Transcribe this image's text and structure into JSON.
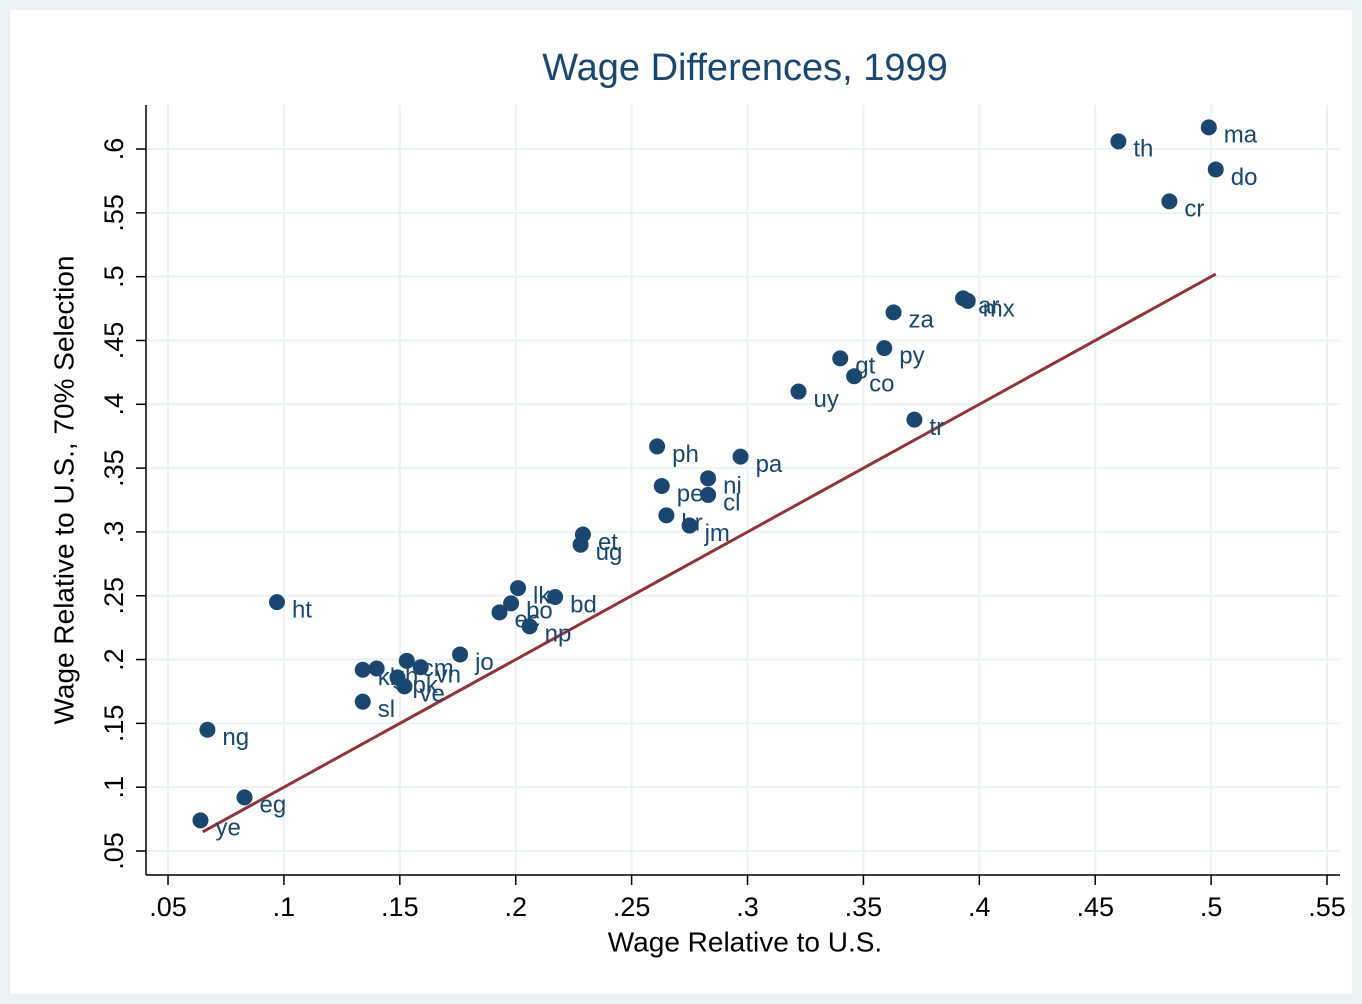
{
  "chart_data": {
    "type": "scatter",
    "title": "Wage Differences, 1999",
    "x_label": "Wage Relative to U.S.",
    "y_label": "Wage Relative to U.S., 70% Selection",
    "color": "#1a476f",
    "point_labels": [
      "ma",
      "th",
      "do",
      "cr",
      "ar",
      "mx",
      "za",
      "py",
      "gt",
      "co",
      "uy",
      "tr",
      "ph",
      "pa",
      "ni",
      "pe",
      "cl",
      "br",
      "jm",
      "et",
      "ug",
      "lk",
      "bd",
      "bo",
      "ec",
      "np",
      "ht",
      "jo",
      "cm",
      "kh",
      "gh",
      "vn",
      "pk",
      "ve",
      "sl",
      "ng",
      "eg",
      "ye"
    ],
    "x": [
      0.499,
      0.46,
      0.502,
      0.482,
      0.393,
      0.395,
      0.363,
      0.359,
      0.34,
      0.346,
      0.322,
      0.372,
      0.261,
      0.297,
      0.283,
      0.263,
      0.283,
      0.265,
      0.275,
      0.229,
      0.228,
      0.201,
      0.217,
      0.198,
      0.193,
      0.206,
      0.097,
      0.176,
      0.153,
      0.134,
      0.14,
      0.159,
      0.149,
      0.152,
      0.134,
      0.067,
      0.083,
      0.064
    ],
    "values": [
      0.617,
      0.606,
      0.584,
      0.559,
      0.483,
      0.481,
      0.472,
      0.444,
      0.436,
      0.422,
      0.41,
      0.388,
      0.367,
      0.359,
      0.342,
      0.336,
      0.329,
      0.313,
      0.305,
      0.298,
      0.29,
      0.256,
      0.249,
      0.244,
      0.237,
      0.226,
      0.245,
      0.204,
      0.199,
      0.192,
      0.193,
      0.194,
      0.186,
      0.179,
      0.167,
      0.145,
      0.092,
      0.074
    ],
    "fit_line": {
      "color": "#90353b",
      "x": [
        0.065,
        0.502
      ],
      "values": [
        0.065,
        0.502
      ]
    },
    "xlim": [
      0.0405,
      0.5556
    ],
    "ylim": [
      0.0312,
      0.6345
    ],
    "xticks": [
      {
        "value": 0.05,
        "label": ".05"
      },
      {
        "value": 0.1,
        "label": ".1"
      },
      {
        "value": 0.15,
        "label": ".15"
      },
      {
        "value": 0.2,
        "label": ".2"
      },
      {
        "value": 0.25,
        "label": ".25"
      },
      {
        "value": 0.3,
        "label": ".3"
      },
      {
        "value": 0.35,
        "label": ".35"
      },
      {
        "value": 0.4,
        "label": ".4"
      },
      {
        "value": 0.45,
        "label": ".45"
      },
      {
        "value": 0.5,
        "label": ".5"
      },
      {
        "value": 0.55,
        "label": ".55"
      }
    ],
    "yticks": [
      {
        "value": 0.05,
        "label": ".05"
      },
      {
        "value": 0.1,
        "label": ".1"
      },
      {
        "value": 0.15,
        "label": ".15"
      },
      {
        "value": 0.2,
        "label": ".2"
      },
      {
        "value": 0.25,
        "label": ".25"
      },
      {
        "value": 0.3,
        "label": ".3"
      },
      {
        "value": 0.35,
        "label": ".35"
      },
      {
        "value": 0.4,
        "label": ".4"
      },
      {
        "value": 0.45,
        "label": ".45"
      },
      {
        "value": 0.5,
        "label": ".5"
      },
      {
        "value": 0.55,
        "label": ".55"
      },
      {
        "value": 0.6,
        "label": ".6"
      }
    ],
    "grid": true
  }
}
